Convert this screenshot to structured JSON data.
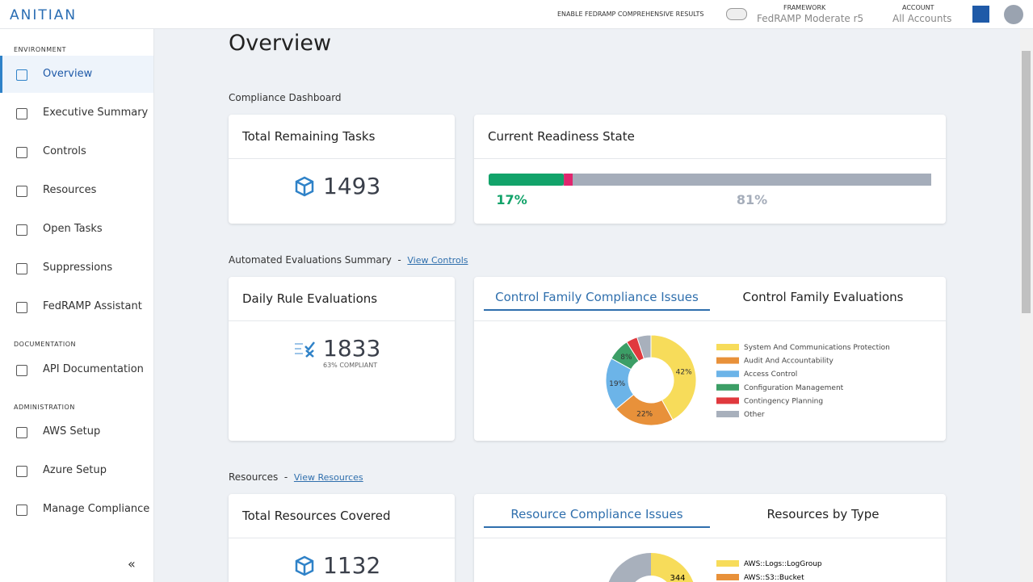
{
  "header": {
    "logo": "ANITIAN",
    "toggle_label": "ENABLE FEDRAMP COMPREHENSIVE RESULTS",
    "framework_label": "FRAMEWORK",
    "framework_value": "FedRAMP Moderate r5",
    "account_label": "ACCOUNT",
    "account_value": "All Accounts"
  },
  "sidebar": {
    "sections": [
      {
        "title": "ENVIRONMENT",
        "items": [
          "Overview",
          "Executive Summary",
          "Controls",
          "Resources",
          "Open Tasks",
          "Suppressions",
          "FedRAMP Assistant"
        ]
      },
      {
        "title": "DOCUMENTATION",
        "items": [
          "API Documentation"
        ]
      },
      {
        "title": "ADMINISTRATION",
        "items": [
          "AWS Setup",
          "Azure Setup",
          "Manage Compliance"
        ]
      }
    ],
    "collapse": "«"
  },
  "page_title": "Overview",
  "compliance_dashboard": {
    "heading": "Compliance Dashboard",
    "tasks": {
      "title": "Total Remaining Tasks",
      "value": 1493
    },
    "readiness": {
      "title": "Current Readiness State",
      "values": [
        17,
        2,
        81
      ],
      "value_labels": [
        "17%",
        null,
        "81%"
      ],
      "colors": [
        "#12a36a",
        "#e0266e",
        "#a5adba"
      ]
    }
  },
  "evaluations": {
    "heading": "Automated Evaluations Summary",
    "link": "View Controls",
    "daily": {
      "title": "Daily Rule Evaluations",
      "value": 1833,
      "caption": "63% COMPLIANT"
    },
    "tabs": [
      "Control Family Compliance Issues",
      "Control Family Evaluations"
    ],
    "chart_data": {
      "type": "pie",
      "categories": [
        "System And Communications Protection",
        "Audit And Accountability",
        "Access Control",
        "Configuration Management",
        "Contingency Planning",
        "Other"
      ],
      "values": [
        42,
        22,
        19,
        8,
        4,
        5
      ],
      "value_labels": [
        "42%",
        "22%",
        "19%",
        "8%",
        null,
        null
      ],
      "colors": [
        "#f7dc5a",
        "#e8913a",
        "#6cb4e8",
        "#3c9e66",
        "#e0393e",
        "#a8b0bc"
      ]
    }
  },
  "resources": {
    "heading": "Resources",
    "link": "View Resources",
    "total": {
      "title": "Total Resources Covered",
      "value": 1132
    },
    "tabs": [
      "Resource Compliance Issues",
      "Resources by Type"
    ],
    "legend": [
      "AWS::Logs::LogGroup",
      "AWS::S3::Bucket"
    ],
    "segment_label": "344"
  }
}
